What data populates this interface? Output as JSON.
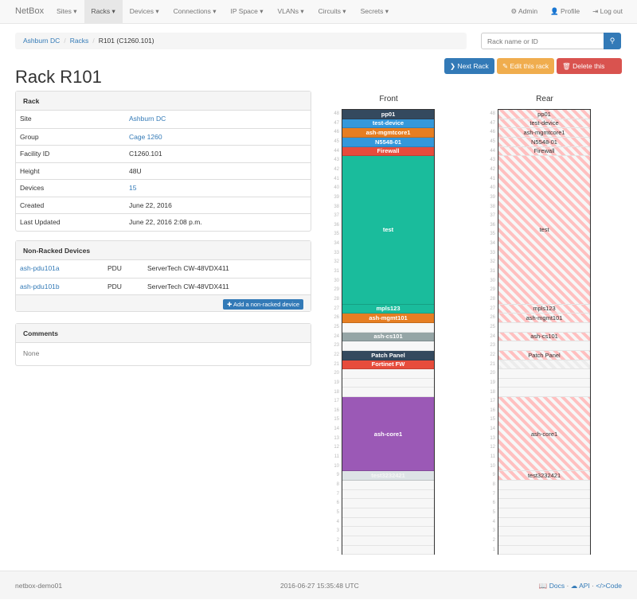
{
  "nav": {
    "brand": "NetBox",
    "menus": [
      "Sites ▾",
      "Racks ▾",
      "Devices ▾",
      "Connections ▾",
      "IP Space ▾",
      "VLANs ▾",
      "Circuits ▾",
      "Secrets ▾"
    ],
    "active": "Racks ▾",
    "admin": "Admin",
    "profile": "Profile",
    "logout": "Log out"
  },
  "breadcrumb": [
    "Ashburn DC",
    "Racks",
    "R101 (C1260.101)"
  ],
  "search": {
    "placeholder": "Rack name or ID",
    "icon": "search-icon"
  },
  "buttons": {
    "next": "Next Rack",
    "edit": "Edit this rack",
    "delete": "Delete this rack"
  },
  "colors": {
    "primary": "#337ab7",
    "warning": "#f0ad4e",
    "danger": "#d9534f"
  },
  "title": "Rack R101",
  "rack_panel": {
    "heading": "Rack",
    "rows": [
      {
        "k": "Site",
        "v": "Ashburn DC",
        "link": true
      },
      {
        "k": "Group",
        "v": "Cage 1260",
        "link": true
      },
      {
        "k": "Facility ID",
        "v": "C1260.101"
      },
      {
        "k": "Height",
        "v": "48U"
      },
      {
        "k": "Devices",
        "v": "15",
        "link": true
      },
      {
        "k": "Created",
        "v": "June 22, 2016"
      },
      {
        "k": "Last Updated",
        "v": "June 22, 2016 2:08 p.m."
      }
    ]
  },
  "non_racked": {
    "heading": "Non-Racked Devices",
    "rows": [
      {
        "name": "ash-pdu101a",
        "role": "PDU",
        "type": "ServerTech CW-48VDX411"
      },
      {
        "name": "ash-pdu101b",
        "role": "PDU",
        "type": "ServerTech CW-48VDX411"
      }
    ],
    "add_label": "Add a non-racked device"
  },
  "comments": {
    "heading": "Comments",
    "body": "None"
  },
  "elevation": {
    "height": 48,
    "front_label": "Front",
    "rear_label": "Rear",
    "devices": [
      {
        "name": "pp01",
        "top": 48,
        "u": 1,
        "color": "#34495e"
      },
      {
        "name": "test-device",
        "top": 47,
        "u": 1,
        "color": "#3498db"
      },
      {
        "name": "ash-mgmtcore1",
        "top": 46,
        "u": 1,
        "color": "#e67e22"
      },
      {
        "name": "N5548-01",
        "top": 45,
        "u": 1,
        "color": "#3498db"
      },
      {
        "name": "Firewall",
        "top": 44,
        "u": 1,
        "color": "#e74c3c"
      },
      {
        "name": "test",
        "top": 43,
        "u": 16,
        "color": "#1abc9c"
      },
      {
        "name": "mpls123",
        "top": 27,
        "u": 1,
        "color": "#1abc9c"
      },
      {
        "name": "ash-mgmt101",
        "top": 26,
        "u": 1,
        "color": "#e67e22"
      },
      {
        "name": "ash-cs101",
        "top": 24,
        "u": 1,
        "color": "#95a5a6"
      },
      {
        "name": "Patch Panel",
        "top": 22,
        "u": 1,
        "color": "#34495e"
      },
      {
        "name": "Fortinet FW",
        "top": 21,
        "u": 1,
        "color": "#e74c3c",
        "rear_hidden": true
      },
      {
        "name": "ash-core1",
        "top": 17,
        "u": 8,
        "color": "#9b59b6"
      },
      {
        "name": "test3232421",
        "top": 9,
        "u": 1,
        "color": "#dde3e6"
      }
    ]
  },
  "footer": {
    "host": "netbox-demo01",
    "time": "2016-06-27 15:35:48 UTC",
    "docs": "Docs",
    "api": "API",
    "code": "Code"
  }
}
